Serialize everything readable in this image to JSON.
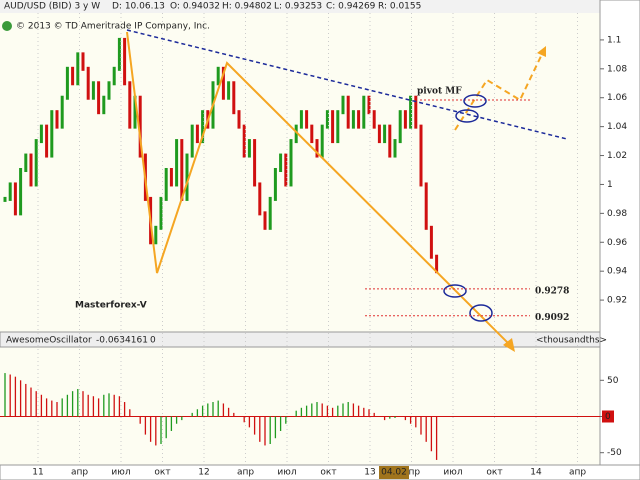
{
  "header": {
    "symbol": "AUD/USD (BID) 3 y W",
    "fields": [
      "D: 10.06.13",
      "O: 0.94032",
      "H: 0.94802",
      "L: 0.93253",
      "C: 0.94269",
      "R: 0.0155"
    ]
  },
  "copyright": "© 2013 © TD Ameritrade IP Company, Inc.",
  "chart_data": [
    {
      "type": "candlestick",
      "watermark": "Masterforex-V",
      "pivot_label": "pivot MF",
      "up_color": "#1f9a1f",
      "down_color": "#d01010",
      "values": [
        0.99,
        1.0,
        0.98,
        1.01,
        1.02,
        1.0,
        1.03,
        1.04,
        1.02,
        1.05,
        1.04,
        1.06,
        1.08,
        1.07,
        1.09,
        1.08,
        1.06,
        1.07,
        1.05,
        1.06,
        1.07,
        1.08,
        1.1,
        1.07,
        1.04,
        1.06,
        1.02,
        0.99,
        0.96,
        0.97,
        0.99,
        1.01,
        1.0,
        1.03,
        0.99,
        1.02,
        1.04,
        1.03,
        1.05,
        1.04,
        1.07,
        1.08,
        1.06,
        1.07,
        1.05,
        1.04,
        1.02,
        1.03,
        1.0,
        0.98,
        0.97,
        0.99,
        1.01,
        1.02,
        1.0,
        1.03,
        1.04,
        1.05,
        1.04,
        1.03,
        1.02,
        1.04,
        1.05,
        1.03,
        1.05,
        1.06,
        1.04,
        1.05,
        1.04,
        1.06,
        1.05,
        1.04,
        1.03,
        1.04,
        1.02,
        1.03,
        1.05,
        1.04,
        1.06,
        1.04,
        1.0,
        0.97,
        0.95,
        0.94
      ],
      "levels": [
        0.9278,
        0.9092
      ],
      "level_color": "#e03030",
      "ylim": [
        0.9,
        1.12
      ],
      "yticks": [
        1.1,
        1.08,
        1.06,
        1.04,
        1.02,
        1,
        0.98,
        0.96,
        0.94,
        0.92
      ]
    },
    {
      "type": "bar",
      "name": "AwesomeOscillator",
      "current": "-0.0634161",
      "param": "0",
      "unit_label": "<thousandths>",
      "up_color": "#1f9a1f",
      "down_color": "#d01010",
      "zero_marker": 0,
      "values": [
        60,
        58,
        55,
        50,
        45,
        40,
        35,
        30,
        25,
        22,
        20,
        25,
        30,
        35,
        38,
        35,
        30,
        28,
        25,
        30,
        32,
        30,
        28,
        20,
        10,
        0,
        -10,
        -25,
        -35,
        -40,
        -38,
        -30,
        -20,
        -10,
        -5,
        0,
        5,
        10,
        15,
        18,
        20,
        22,
        18,
        12,
        5,
        0,
        -8,
        -15,
        -25,
        -35,
        -40,
        -38,
        -30,
        -20,
        -10,
        0,
        8,
        12,
        15,
        18,
        20,
        18,
        15,
        12,
        15,
        18,
        20,
        18,
        15,
        12,
        10,
        5,
        0,
        -5,
        -3,
        -2,
        0,
        -5,
        -10,
        -15,
        -25,
        -35,
        -48,
        -60
      ],
      "ylim": [
        -67,
        96
      ],
      "yticks": [
        50,
        0,
        -50
      ]
    }
  ],
  "x_axis": {
    "labels": [
      "11",
      "апр",
      "июл",
      "окт",
      "12",
      "апр",
      "июл",
      "окт",
      "13",
      "апр",
      "июл",
      "окт",
      "14",
      "апр"
    ],
    "marker": "04.02"
  }
}
